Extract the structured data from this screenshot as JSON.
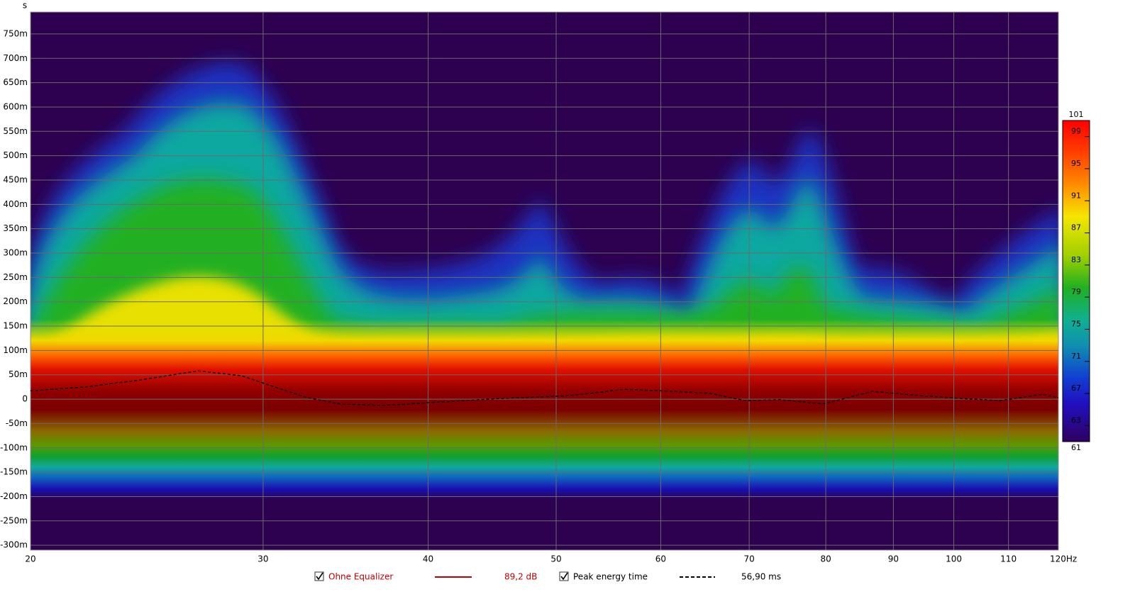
{
  "chart_data": {
    "type": "spectrogram",
    "y_axis_label": "s",
    "xscale": "log",
    "xlim": [
      20,
      120
    ],
    "xticks": [
      20,
      30,
      40,
      50,
      60,
      70,
      80,
      90,
      100,
      110,
      {
        "value": 120,
        "label": "120Hz"
      }
    ],
    "ylim": [
      -0.31,
      0.795
    ],
    "yticks": [
      {
        "value": 0.75,
        "label": "750m"
      },
      {
        "value": 0.7,
        "label": "700m"
      },
      {
        "value": 0.65,
        "label": "650m"
      },
      {
        "value": 0.6,
        "label": "600m"
      },
      {
        "value": 0.55,
        "label": "550m"
      },
      {
        "value": 0.5,
        "label": "500m"
      },
      {
        "value": 0.45,
        "label": "450m"
      },
      {
        "value": 0.4,
        "label": "400m"
      },
      {
        "value": 0.35,
        "label": "350m"
      },
      {
        "value": 0.3,
        "label": "300m"
      },
      {
        "value": 0.25,
        "label": "250m"
      },
      {
        "value": 0.2,
        "label": "200m"
      },
      {
        "value": 0.15,
        "label": "150m"
      },
      {
        "value": 0.1,
        "label": "100m"
      },
      {
        "value": 0.05,
        "label": "50m"
      },
      0,
      {
        "value": -0.05,
        "label": "-50m"
      },
      {
        "value": -0.1,
        "label": "-100m"
      },
      {
        "value": -0.15,
        "label": "-150m"
      },
      {
        "value": -0.2,
        "label": "-200m"
      },
      {
        "value": -0.25,
        "label": "-250m"
      },
      {
        "value": -0.3,
        "label": "-300m"
      }
    ],
    "grid": true,
    "colorbar": {
      "lim": [
        61,
        101
      ],
      "ticks": [
        61,
        63,
        67,
        71,
        75,
        79,
        83,
        87,
        91,
        95,
        99,
        101
      ]
    },
    "traces": [
      {
        "name": "Ohne Equalizer",
        "color": "#c00000",
        "legend_value": "89,2 dB"
      }
    ],
    "series": [
      {
        "name": "Peak energy time",
        "color": "#000000",
        "legend_value": "56,90 ms",
        "x": [
          20,
          22.0,
          24.0,
          26.8,
          28.9,
          30.3,
          32.3,
          34.3,
          37.0,
          40.8,
          45.1,
          51.0,
          56.3,
          61.4,
          65.3,
          69.5,
          73.9,
          79.6,
          86.8,
          94.6,
          101.9,
          108.4,
          116.8,
          120
        ],
        "values": [
          0.017,
          0.025,
          0.038,
          0.058,
          0.048,
          0.029,
          0.004,
          -0.01,
          -0.013,
          -0.006,
          0.001,
          0.007,
          0.02,
          0.016,
          0.012,
          -0.003,
          -0.001,
          -0.01,
          0.016,
          0.007,
          0.001,
          -0.003,
          0.01,
          0.003
        ]
      }
    ]
  }
}
